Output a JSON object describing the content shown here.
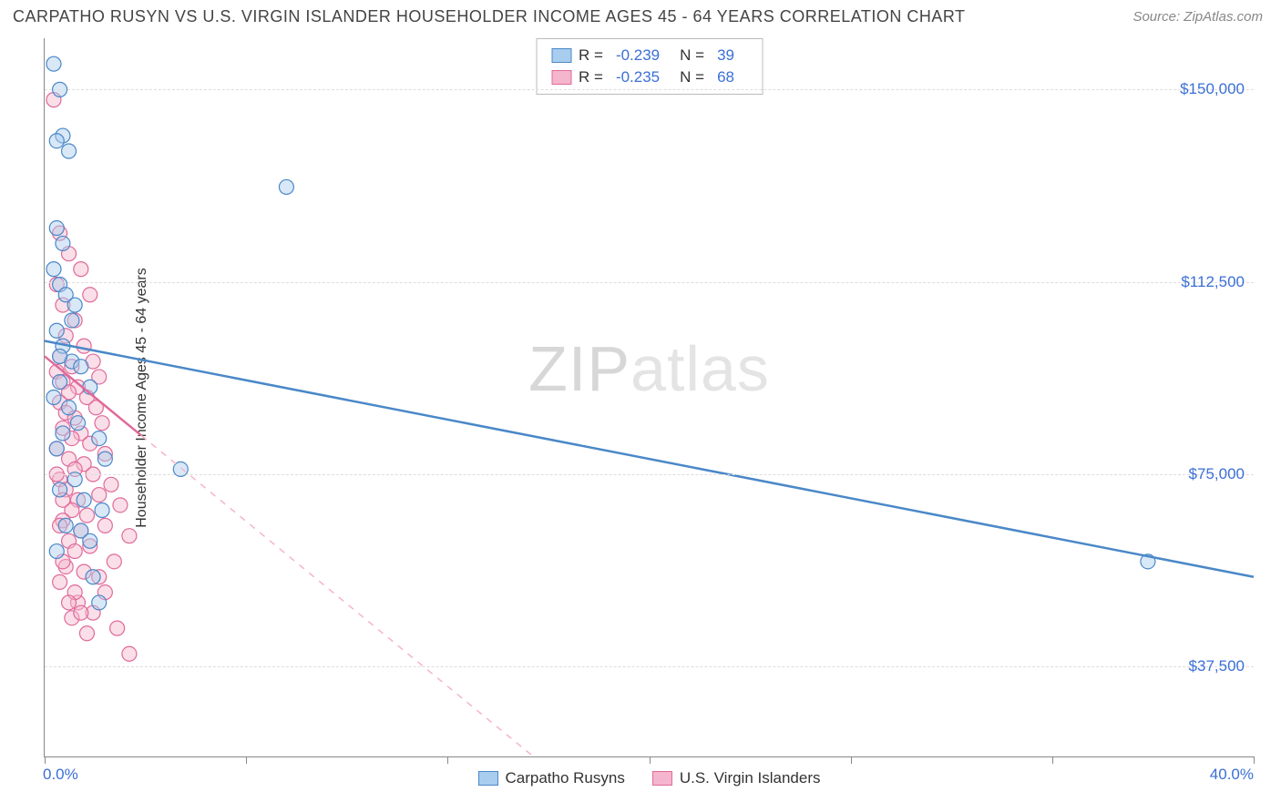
{
  "header": {
    "title": "CARPATHO RUSYN VS U.S. VIRGIN ISLANDER HOUSEHOLDER INCOME AGES 45 - 64 YEARS CORRELATION CHART",
    "source": "Source: ZipAtlas.com"
  },
  "watermark": {
    "part1": "ZIP",
    "part2": "atlas"
  },
  "chart": {
    "type": "scatter_with_regression",
    "ylabel": "Householder Income Ages 45 - 64 years",
    "xlim": [
      0,
      40
    ],
    "ylim": [
      20000,
      160000
    ],
    "y_gridlines": [
      37500,
      75000,
      112500,
      150000
    ],
    "y_tick_labels": [
      "$37,500",
      "$75,000",
      "$112,500",
      "$150,000"
    ],
    "x_tick_labels": {
      "min": "0.0%",
      "max": "40.0%"
    },
    "x_minor_ticks": [
      0,
      6.67,
      13.33,
      20,
      26.67,
      33.33,
      40
    ],
    "background_color": "#ffffff",
    "grid_color": "#dddddd",
    "axis_color": "#888888",
    "marker_radius": 8,
    "marker_opacity": 0.45,
    "line_width": 2.5,
    "series": [
      {
        "name": "Carpatho Rusyns",
        "color": "#5a9ad8",
        "fill": "#a8cdee",
        "stroke": "#4a88c8",
        "R": "-0.239",
        "N": "39",
        "regression": {
          "x1": 0,
          "y1": 101000,
          "x2": 40,
          "y2": 55000,
          "dashed_after_x": null
        },
        "points": [
          [
            0.3,
            155000
          ],
          [
            0.5,
            150000
          ],
          [
            0.6,
            141000
          ],
          [
            0.4,
            140000
          ],
          [
            0.8,
            138000
          ],
          [
            8.0,
            131000
          ],
          [
            0.4,
            123000
          ],
          [
            0.6,
            120000
          ],
          [
            0.3,
            115000
          ],
          [
            0.5,
            112000
          ],
          [
            0.7,
            110000
          ],
          [
            1.0,
            108000
          ],
          [
            0.4,
            103000
          ],
          [
            0.6,
            100000
          ],
          [
            0.9,
            97000
          ],
          [
            1.2,
            96000
          ],
          [
            0.5,
            93000
          ],
          [
            1.5,
            92000
          ],
          [
            0.3,
            90000
          ],
          [
            0.8,
            88000
          ],
          [
            1.1,
            85000
          ],
          [
            0.6,
            83000
          ],
          [
            1.8,
            82000
          ],
          [
            0.4,
            80000
          ],
          [
            2.0,
            78000
          ],
          [
            4.5,
            76000
          ],
          [
            1.0,
            74000
          ],
          [
            0.5,
            72000
          ],
          [
            1.3,
            70000
          ],
          [
            1.9,
            68000
          ],
          [
            0.7,
            65000
          ],
          [
            1.2,
            64000
          ],
          [
            1.5,
            62000
          ],
          [
            0.4,
            60000
          ],
          [
            1.6,
            55000
          ],
          [
            1.8,
            50000
          ],
          [
            36.5,
            58000
          ],
          [
            0.9,
            105000
          ],
          [
            0.5,
            98000
          ]
        ]
      },
      {
        "name": "U.S. Virgin Islanders",
        "color": "#e97ba5",
        "fill": "#f5b5cd",
        "stroke": "#e06a99",
        "R": "-0.235",
        "N": "68",
        "regression": {
          "x1": 0,
          "y1": 98000,
          "x2": 40,
          "y2": -95000,
          "dashed_after_x": 3.2
        },
        "points": [
          [
            0.3,
            148000
          ],
          [
            0.5,
            122000
          ],
          [
            0.8,
            118000
          ],
          [
            1.2,
            115000
          ],
          [
            0.4,
            112000
          ],
          [
            1.5,
            110000
          ],
          [
            0.6,
            108000
          ],
          [
            1.0,
            105000
          ],
          [
            0.7,
            102000
          ],
          [
            1.3,
            100000
          ],
          [
            0.5,
            98000
          ],
          [
            1.6,
            97000
          ],
          [
            0.9,
            96000
          ],
          [
            0.4,
            95000
          ],
          [
            1.8,
            94000
          ],
          [
            0.6,
            93000
          ],
          [
            1.1,
            92000
          ],
          [
            0.8,
            91000
          ],
          [
            1.4,
            90000
          ],
          [
            0.5,
            89000
          ],
          [
            1.7,
            88000
          ],
          [
            0.7,
            87000
          ],
          [
            1.0,
            86000
          ],
          [
            1.9,
            85000
          ],
          [
            0.6,
            84000
          ],
          [
            1.2,
            83000
          ],
          [
            0.9,
            82000
          ],
          [
            1.5,
            81000
          ],
          [
            0.4,
            80000
          ],
          [
            2.0,
            79000
          ],
          [
            0.8,
            78000
          ],
          [
            1.3,
            77000
          ],
          [
            1.0,
            76000
          ],
          [
            1.6,
            75000
          ],
          [
            0.5,
            74000
          ],
          [
            2.2,
            73000
          ],
          [
            0.7,
            72000
          ],
          [
            1.8,
            71000
          ],
          [
            1.1,
            70000
          ],
          [
            2.5,
            69000
          ],
          [
            0.9,
            68000
          ],
          [
            1.4,
            67000
          ],
          [
            0.6,
            66000
          ],
          [
            2.0,
            65000
          ],
          [
            1.2,
            64000
          ],
          [
            2.8,
            63000
          ],
          [
            0.8,
            62000
          ],
          [
            1.5,
            61000
          ],
          [
            1.0,
            60000
          ],
          [
            2.3,
            58000
          ],
          [
            0.7,
            57000
          ],
          [
            1.3,
            56000
          ],
          [
            1.8,
            55000
          ],
          [
            0.5,
            54000
          ],
          [
            2.0,
            52000
          ],
          [
            1.1,
            50000
          ],
          [
            1.6,
            48000
          ],
          [
            0.9,
            47000
          ],
          [
            2.4,
            45000
          ],
          [
            1.4,
            44000
          ],
          [
            2.8,
            40000
          ],
          [
            0.6,
            58000
          ],
          [
            1.0,
            52000
          ],
          [
            0.8,
            50000
          ],
          [
            1.2,
            48000
          ],
          [
            0.4,
            75000
          ],
          [
            0.6,
            70000
          ],
          [
            0.5,
            65000
          ]
        ]
      }
    ],
    "legend_bottom": [
      {
        "label": "Carpatho Rusyns",
        "fill": "#a8cdee",
        "stroke": "#4a88c8"
      },
      {
        "label": "U.S. Virgin Islanders",
        "fill": "#f5b5cd",
        "stroke": "#e06a99"
      }
    ]
  }
}
